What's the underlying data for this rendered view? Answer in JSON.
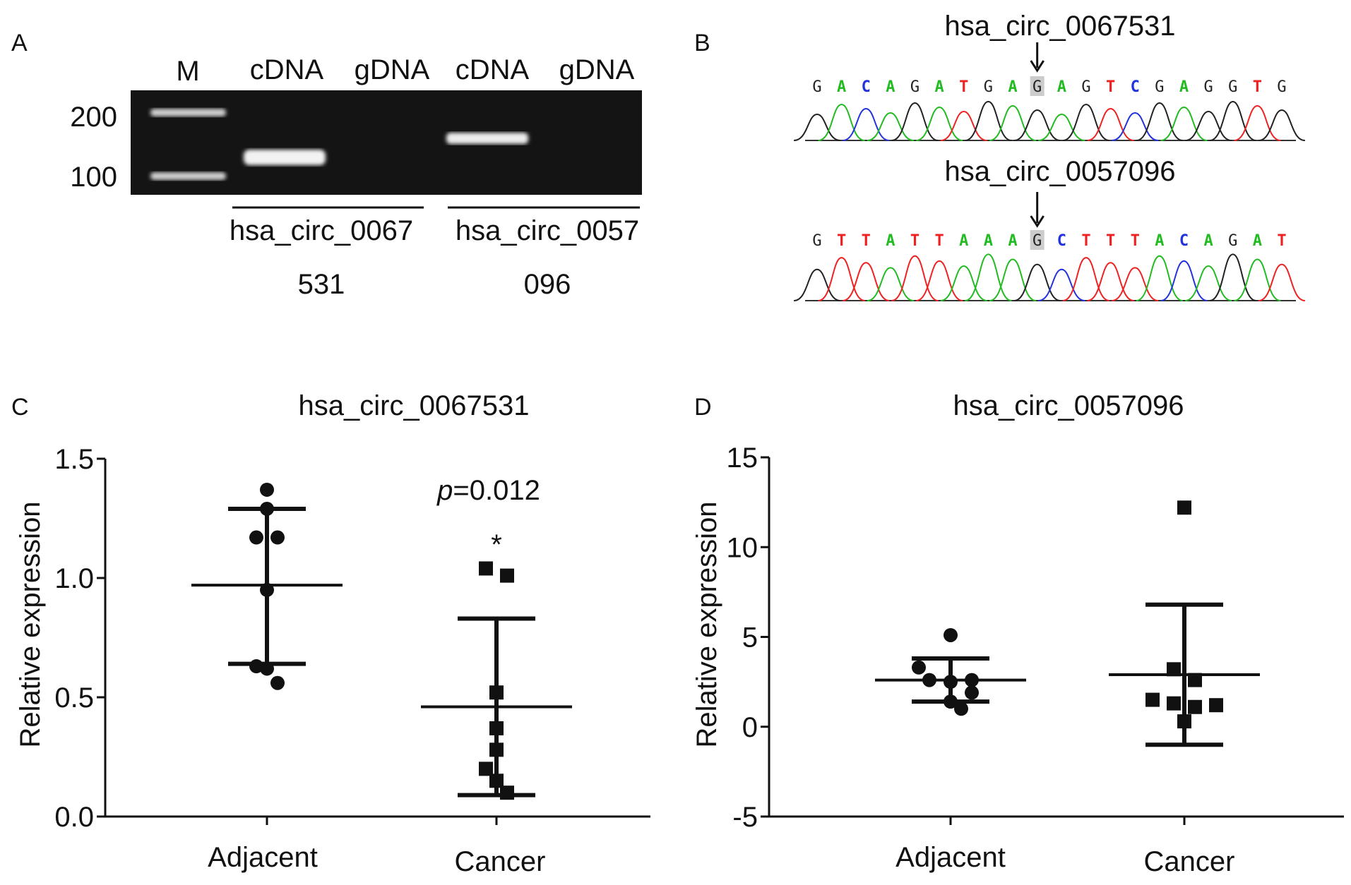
{
  "panels": {
    "a": "A",
    "b": "B",
    "c": "C",
    "d": "D"
  },
  "gel": {
    "lane_labels": [
      "M",
      "cDNA",
      "gDNA",
      "cDNA",
      "gDNA"
    ],
    "size_labels": [
      "200",
      "100"
    ],
    "groups": [
      {
        "line1": "hsa_circ_0067",
        "line2": "531"
      },
      {
        "line1": "hsa_circ_0057",
        "line2": "096"
      }
    ]
  },
  "sequencing": [
    {
      "title": "hsa_circ_0067531",
      "sequence": "GACAGATGAGAGTCGAGGTG",
      "junction_index": 9
    },
    {
      "title": "hsa_circ_0057096",
      "sequence": "GTTATTAAAGCTTTACAGAT",
      "junction_index": 9
    }
  ],
  "base_colors": {
    "A": "#22bb22",
    "C": "#2233dd",
    "G": "#222222",
    "T": "#ee2222"
  },
  "chart_data": [
    {
      "type": "scatter",
      "title": "hsa_circ_0067531",
      "ylabel": "Relative expression",
      "categories": [
        "Adjacent",
        "Cancer"
      ],
      "ylim": [
        0,
        1.5
      ],
      "yticks": [
        "0.0",
        "0.5",
        "1.0",
        "1.5"
      ],
      "ytick_values": [
        0,
        0.5,
        1.0,
        1.5
      ],
      "annotation": {
        "p_label": "p",
        "p_value": "=0.012",
        "star": "*"
      },
      "series": [
        {
          "name": "Adjacent",
          "marker": "circle",
          "values": [
            1.37,
            1.29,
            1.17,
            1.17,
            0.95,
            0.63,
            0.62,
            0.56
          ],
          "mean": 0.97,
          "err_low": 0.64,
          "err_high": 1.29
        },
        {
          "name": "Cancer",
          "marker": "square",
          "values": [
            1.04,
            1.01,
            0.52,
            0.37,
            0.28,
            0.2,
            0.15,
            0.1
          ],
          "mean": 0.46,
          "err_low": 0.09,
          "err_high": 0.83
        }
      ]
    },
    {
      "type": "scatter",
      "title": "hsa_circ_0057096",
      "ylabel": "Relative expression",
      "categories": [
        "Adjacent",
        "Cancer"
      ],
      "ylim": [
        -5,
        15
      ],
      "yticks": [
        "-5",
        "0",
        "5",
        "10",
        "15"
      ],
      "ytick_values": [
        -5,
        0,
        5,
        10,
        15
      ],
      "series": [
        {
          "name": "Adjacent",
          "marker": "circle",
          "values": [
            5.1,
            3.3,
            2.6,
            2.5,
            2.6,
            1.9,
            1.4,
            1.0
          ],
          "mean": 2.6,
          "err_low": 1.4,
          "err_high": 3.8
        },
        {
          "name": "Cancer",
          "marker": "square",
          "values": [
            12.2,
            3.2,
            2.6,
            1.5,
            1.3,
            0.3,
            1.1,
            1.2
          ],
          "mean": 2.9,
          "err_low": -1.0,
          "err_high": 6.8
        }
      ]
    }
  ]
}
